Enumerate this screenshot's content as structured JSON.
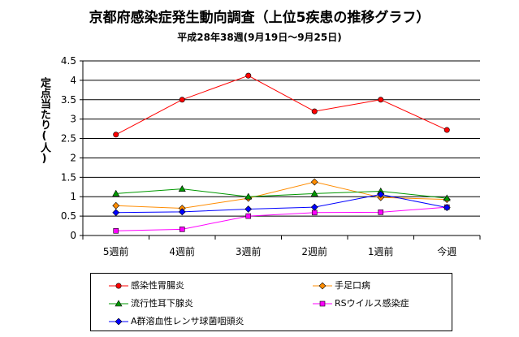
{
  "chart_data": {
    "type": "line",
    "title": "京都府感染症発生動向調査（上位5疾患の推移グラフ）",
    "subtitle": "平成28年38週(9月19日～9月25日)",
    "ylabel": "定点当たり(人)",
    "xlabel": "",
    "categories": [
      "5週前",
      "4週前",
      "3週前",
      "2週前",
      "1週前",
      "今週"
    ],
    "ylim": [
      0,
      4.5
    ],
    "yticks": [
      0,
      0.5,
      1,
      1.5,
      2,
      2.5,
      3,
      3.5,
      4,
      4.5
    ],
    "grid": true,
    "legend_position": "bottom",
    "series": [
      {
        "name": "感染性胃腸炎",
        "color": "#ff0000",
        "marker": "circle",
        "values": [
          2.6,
          3.5,
          4.12,
          3.2,
          3.5,
          2.72
        ]
      },
      {
        "name": "手足口病",
        "color": "#ff8c00",
        "marker": "diamond",
        "values": [
          0.77,
          0.7,
          0.96,
          1.38,
          0.98,
          0.93
        ]
      },
      {
        "name": "流行性耳下腺炎",
        "color": "#009900",
        "marker": "triangle",
        "values": [
          1.08,
          1.2,
          1.0,
          1.08,
          1.14,
          0.96
        ]
      },
      {
        "name": "RSウイルス感染症",
        "color": "#ff00ff",
        "marker": "square",
        "values": [
          0.12,
          0.16,
          0.5,
          0.59,
          0.6,
          0.73
        ]
      },
      {
        "name": "A群溶血性レンサ球菌咽頭炎",
        "color": "#0000ff",
        "marker": "diamond",
        "values": [
          0.59,
          0.61,
          0.68,
          0.73,
          1.06,
          0.72
        ]
      }
    ]
  }
}
